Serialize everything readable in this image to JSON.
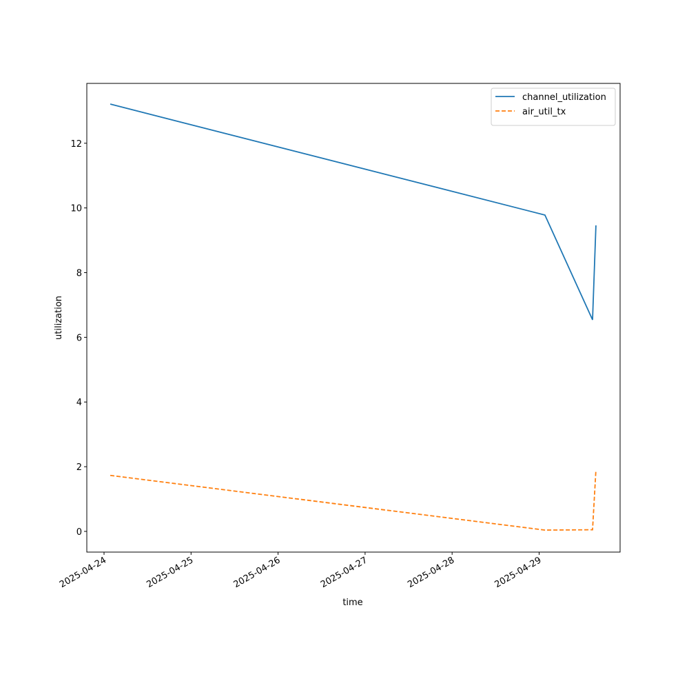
{
  "chart_data": {
    "type": "line",
    "xlabel": "time",
    "ylabel": "utilization",
    "x": [
      "2025-04-24T01:43",
      "2025-04-29T01:36",
      "2025-04-29T14:44",
      "2025-04-29T15:40"
    ],
    "series": [
      {
        "name": "channel_utilization",
        "color": "#1f77b4",
        "dash": "solid",
        "values": [
          13.21,
          9.78,
          6.54,
          9.46
        ]
      },
      {
        "name": "air_util_tx",
        "color": "#ff7f0e",
        "dash": "dashed",
        "values": [
          1.73,
          0.04,
          0.05,
          1.9
        ]
      }
    ],
    "xlim": [
      "2025-04-23T19:15",
      "2025-04-29T22:20"
    ],
    "xticks": [
      "2025-04-24",
      "2025-04-25",
      "2025-04-26",
      "2025-04-27",
      "2025-04-28",
      "2025-04-29"
    ],
    "ylim": [
      -0.64,
      13.85
    ],
    "yticks": [
      0,
      2,
      4,
      6,
      8,
      10,
      12
    ],
    "legend": "upper right",
    "grid": false
  }
}
